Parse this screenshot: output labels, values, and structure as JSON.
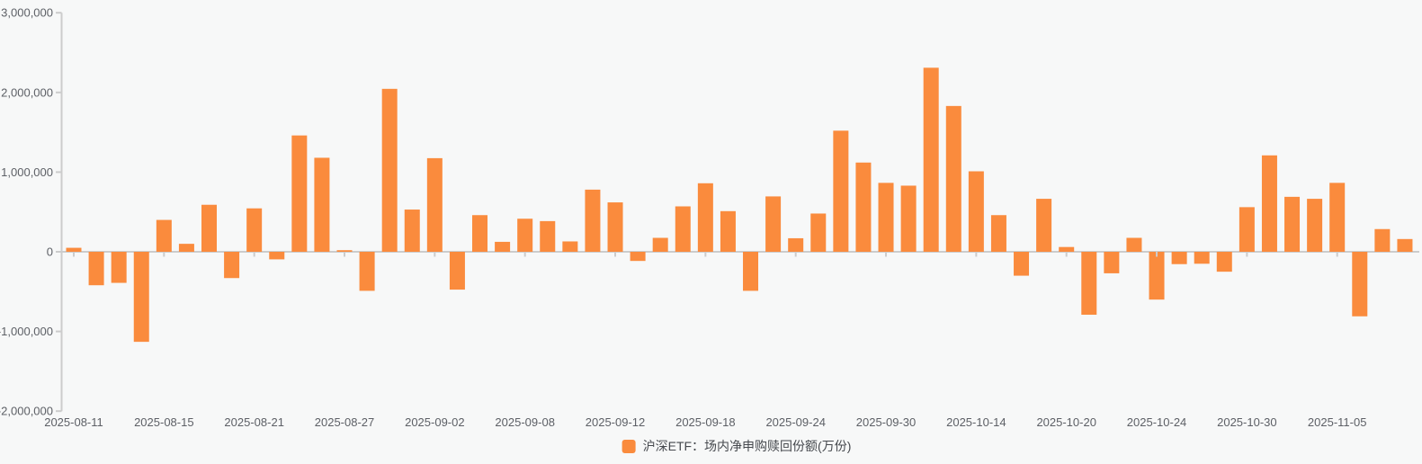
{
  "legend": {
    "label": "沪深ETF：场内净申购赎回份额(万份)",
    "marker_color": "#fa8b3d"
  },
  "colors": {
    "bar": "#fa8b3d",
    "axis_line": "#cccccc",
    "axis_text": "#5d6066",
    "background": "#f7f8f8",
    "legend_text": "#46494e"
  },
  "chart_data": {
    "type": "bar",
    "title": "",
    "series_name": "沪深ETF：场内净申购赎回份额(万份)",
    "unit": "万份",
    "grid": false,
    "legend_position": "bottom-center",
    "ylim": [
      -2000000,
      3000000
    ],
    "ytick_values": [
      3000000,
      2000000,
      1000000,
      0,
      -1000000,
      -2000000
    ],
    "ytick_labels": [
      "3,000,000",
      "2,000,000",
      "1,000,000",
      "0",
      "-1,000,000",
      "-2,000,000"
    ],
    "xtick_labels": [
      "2025-08-11",
      "2025-08-15",
      "2025-08-21",
      "2025-08-27",
      "2025-09-02",
      "2025-09-08",
      "2025-09-12",
      "2025-09-18",
      "2025-09-24",
      "2025-09-30",
      "2025-10-14",
      "2025-10-20",
      "2025-10-24",
      "2025-10-30",
      "2025-11-05"
    ],
    "categories": [
      "2025-08-11",
      "2025-08-12",
      "2025-08-13",
      "2025-08-14",
      "2025-08-15",
      "2025-08-18",
      "2025-08-19",
      "2025-08-20",
      "2025-08-21",
      "2025-08-22",
      "2025-08-25",
      "2025-08-26",
      "2025-08-27",
      "2025-08-28",
      "2025-08-29",
      "2025-09-01",
      "2025-09-02",
      "2025-09-03",
      "2025-09-04",
      "2025-09-05",
      "2025-09-08",
      "2025-09-09",
      "2025-09-10",
      "2025-09-11",
      "2025-09-12",
      "2025-09-15",
      "2025-09-16",
      "2025-09-17",
      "2025-09-18",
      "2025-09-19",
      "2025-09-22",
      "2025-09-23",
      "2025-09-24",
      "2025-09-25",
      "2025-09-26",
      "2025-09-29",
      "2025-09-30",
      "2025-10-09",
      "2025-10-10",
      "2025-10-13",
      "2025-10-14",
      "2025-10-15",
      "2025-10-16",
      "2025-10-17",
      "2025-10-20",
      "2025-10-21",
      "2025-10-22",
      "2025-10-23",
      "2025-10-24",
      "2025-10-27",
      "2025-10-28",
      "2025-10-29",
      "2025-10-30",
      "2025-10-31",
      "2025-11-03",
      "2025-11-04",
      "2025-11-05",
      "2025-11-06",
      "2025-11-07",
      "2025-11-10"
    ],
    "values": [
      50000,
      -420000,
      -390000,
      -1130000,
      400000,
      100000,
      590000,
      -330000,
      545000,
      -95000,
      1460000,
      1180000,
      20000,
      -490000,
      2045000,
      530000,
      1175000,
      -475000,
      460000,
      125000,
      415000,
      385000,
      130000,
      780000,
      620000,
      -115000,
      175000,
      570000,
      860000,
      510000,
      -490000,
      695000,
      170000,
      480000,
      1520000,
      1120000,
      865000,
      830000,
      2310000,
      1830000,
      1010000,
      460000,
      -300000,
      665000,
      60000,
      -790000,
      -270000,
      175000,
      -600000,
      -155000,
      -150000,
      -250000,
      560000,
      1210000,
      690000,
      665000,
      865000,
      -810000,
      285000,
      160000
    ]
  }
}
